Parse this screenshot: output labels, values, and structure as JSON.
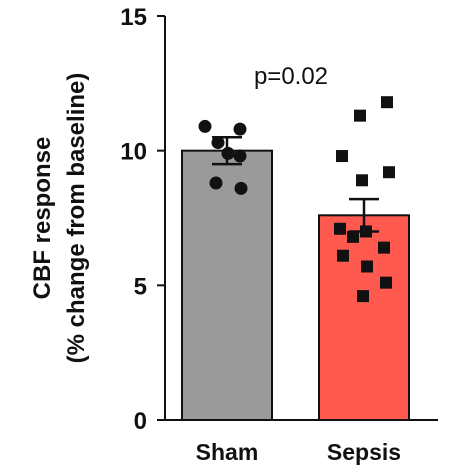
{
  "chart_data": {
    "type": "bar",
    "title": "",
    "xlabel": "",
    "ylabel_line1": "CBF response",
    "ylabel_line2": "(% change from baseline)",
    "ylim": [
      0,
      15
    ],
    "yticks": [
      0,
      5,
      10,
      15
    ],
    "categories": [
      "Sham",
      "Sepsis"
    ],
    "values": [
      10.0,
      7.6
    ],
    "sem": [
      0.5,
      0.6
    ],
    "annotation": "p=0.02",
    "grid": false,
    "legend": "none",
    "colors": {
      "sham_bar": "#9a9a9a",
      "sepsis_bar": "#ff5a4f",
      "axis": "#111111",
      "points": "#111111"
    },
    "points": [
      {
        "group": "Sham",
        "marker": "circle",
        "y": 10.9
      },
      {
        "group": "Sham",
        "marker": "circle",
        "y": 10.8
      },
      {
        "group": "Sham",
        "marker": "circle",
        "y": 10.3
      },
      {
        "group": "Sham",
        "marker": "circle",
        "y": 9.9
      },
      {
        "group": "Sham",
        "marker": "circle",
        "y": 9.8
      },
      {
        "group": "Sham",
        "marker": "circle",
        "y": 8.8
      },
      {
        "group": "Sham",
        "marker": "circle",
        "y": 8.6
      },
      {
        "group": "Sepsis",
        "marker": "square",
        "y": 11.8
      },
      {
        "group": "Sepsis",
        "marker": "square",
        "y": 11.3
      },
      {
        "group": "Sepsis",
        "marker": "square",
        "y": 9.8
      },
      {
        "group": "Sepsis",
        "marker": "square",
        "y": 9.2
      },
      {
        "group": "Sepsis",
        "marker": "square",
        "y": 8.9
      },
      {
        "group": "Sepsis",
        "marker": "square",
        "y": 7.0
      },
      {
        "group": "Sepsis",
        "marker": "square",
        "y": 7.1
      },
      {
        "group": "Sepsis",
        "marker": "square",
        "y": 6.8
      },
      {
        "group": "Sepsis",
        "marker": "square",
        "y": 6.4
      },
      {
        "group": "Sepsis",
        "marker": "square",
        "y": 6.1
      },
      {
        "group": "Sepsis",
        "marker": "square",
        "y": 5.7
      },
      {
        "group": "Sepsis",
        "marker": "square",
        "y": 5.1
      },
      {
        "group": "Sepsis",
        "marker": "square",
        "y": 4.6
      }
    ]
  }
}
